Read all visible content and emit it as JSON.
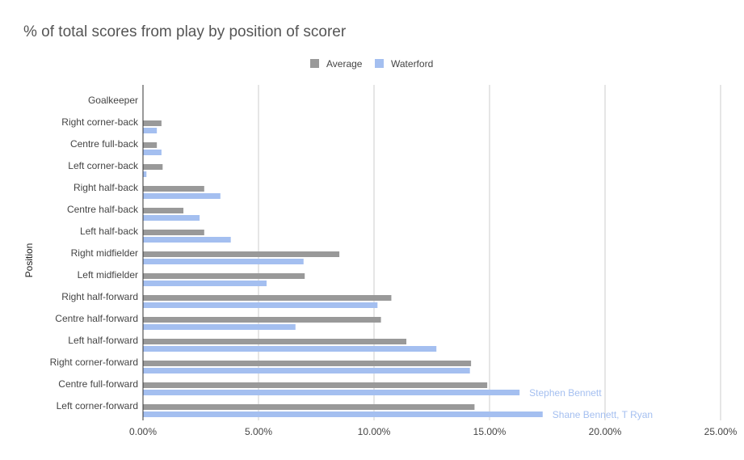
{
  "chart_data": {
    "type": "bar",
    "orientation": "horizontal",
    "title": "% of total scores from play by position of scorer",
    "xlabel": "",
    "ylabel": "Position",
    "xlim": [
      0,
      25
    ],
    "x_ticks": [
      "0.00%",
      "5.00%",
      "10.00%",
      "15.00%",
      "20.00%",
      "25.00%"
    ],
    "grid": true,
    "legend_position": "top-center",
    "categories": [
      "Goalkeeper",
      "Right corner-back",
      "Centre full-back",
      "Left corner-back",
      "Right half-back",
      "Centre half-back",
      "Left half-back",
      "Right midfielder",
      "Left midfielder",
      "Right half-forward",
      "Centre half-forward",
      "Left half-forward",
      "Right corner-forward",
      "Centre full-forward",
      "Left corner-forward"
    ],
    "series": [
      {
        "name": "Average",
        "color": "#999999",
        "values": [
          0,
          0.8,
          0.6,
          0.85,
          2.65,
          1.75,
          2.65,
          8.5,
          7.0,
          10.75,
          10.3,
          11.4,
          14.2,
          14.9,
          14.35
        ]
      },
      {
        "name": "Waterford",
        "color": "#a4bff0",
        "values": [
          0,
          0.6,
          0.8,
          0.15,
          3.35,
          2.45,
          3.8,
          6.95,
          5.35,
          10.15,
          6.6,
          12.7,
          14.15,
          16.3,
          17.3
        ]
      }
    ],
    "annotations": [
      {
        "category": "Centre full-forward",
        "series": "Waterford",
        "text": "Stephen Bennett"
      },
      {
        "category": "Left corner-forward",
        "series": "Waterford",
        "text": "Shane Bennett, T Ryan"
      }
    ]
  }
}
